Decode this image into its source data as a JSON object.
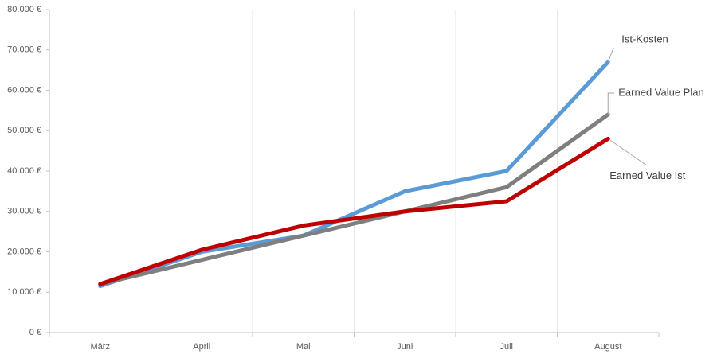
{
  "chart_data": {
    "type": "line",
    "categories": [
      "März",
      "April",
      "Mai",
      "Juni",
      "Juli",
      "August"
    ],
    "series": [
      {
        "name": "Ist-Kosten",
        "color": "#5b9bd5",
        "values": [
          11500,
          20000,
          24000,
          35000,
          40000,
          67000
        ]
      },
      {
        "name": "Earned Value Plan",
        "color": "#7f7f7f",
        "values": [
          12000,
          18000,
          24000,
          30000,
          36000,
          54000
        ]
      },
      {
        "name": "Earned Value Ist",
        "color": "#c00000",
        "values": [
          12000,
          20500,
          26500,
          30000,
          32500,
          48000
        ]
      }
    ],
    "ylim": [
      0,
      80000
    ],
    "yticks": [
      {
        "value": 0,
        "label": "0 €"
      },
      {
        "value": 10000,
        "label": "10.000 €"
      },
      {
        "value": 20000,
        "label": "20.000 €"
      },
      {
        "value": 30000,
        "label": "30.000 €"
      },
      {
        "value": 40000,
        "label": "40.000 €"
      },
      {
        "value": 50000,
        "label": "50.000 €"
      },
      {
        "value": 60000,
        "label": "60.000 €"
      },
      {
        "value": 70000,
        "label": "70.000 €"
      },
      {
        "value": 80000,
        "label": "80.000 €"
      }
    ],
    "grid": true
  }
}
